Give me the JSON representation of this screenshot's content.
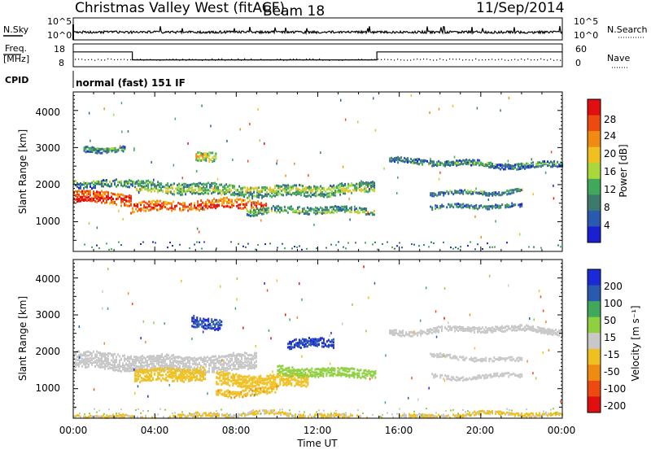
{
  "header": {
    "station": "Christmas Valley West (fitACF)",
    "beam": "Beam 18",
    "date": "11/Sep/2014"
  },
  "mode_text": "normal (fast) 151 IF",
  "noise_panel": {
    "left_label": "N.Sky",
    "right_label": "N.Search",
    "left_ticks": [
      "10^5",
      "10^0"
    ],
    "right_ticks": [
      "10^5",
      "10^0"
    ]
  },
  "freq_panel": {
    "left_label_line1": "Freq.",
    "left_label_line2": "[MHz]",
    "right_label": "Nave",
    "left_ticks": [
      "18",
      "8"
    ],
    "right_ticks": [
      "60",
      "0"
    ],
    "cpid_label": "CPID"
  },
  "time_axis": {
    "label": "Time UT",
    "ticks": [
      "00:00",
      "04:00",
      "08:00",
      "12:00",
      "16:00",
      "20:00",
      "00:00"
    ]
  },
  "colors": {
    "power_scale": [
      "#1a1fd2",
      "#2a5ab0",
      "#3c7a6e",
      "#3fa85a",
      "#a8d83a",
      "#f0c020",
      "#f08a10",
      "#ee4a10",
      "#e01010"
    ],
    "velocity_scale": [
      "#1a2ad8",
      "#2a5ab0",
      "#3fa85a",
      "#8ed040",
      "#c8c8c8",
      "#f0c020",
      "#f08a10",
      "#ee4a10",
      "#e01010"
    ]
  },
  "chart_data": [
    {
      "type": "heatmap",
      "name": "power",
      "ylabel": "Slant Range [km]",
      "xlim_hours": [
        0,
        24
      ],
      "ylim": [
        200,
        4500
      ],
      "yticks": [
        "1000",
        "2000",
        "3000",
        "4000"
      ],
      "colorbar": {
        "label": "Power [dB]",
        "ticks": [
          "4",
          "8",
          "12",
          "16",
          "20",
          "24",
          "28"
        ],
        "range": [
          0,
          32
        ]
      },
      "features": [
        {
          "kind": "band",
          "start_h": 0.0,
          "end_h": 2.8,
          "range_km": 1650,
          "width_km": 320,
          "value": 26
        },
        {
          "kind": "band",
          "start_h": 2.8,
          "end_h": 9.5,
          "range_km": 1450,
          "width_km": 260,
          "value": 24
        },
        {
          "kind": "band",
          "start_h": 3.0,
          "end_h": 14.8,
          "range_km": 1900,
          "width_km": 300,
          "value": 10
        },
        {
          "kind": "band",
          "start_h": 8.5,
          "end_h": 14.8,
          "range_km": 1300,
          "width_km": 180,
          "value": 8
        },
        {
          "kind": "band",
          "start_h": 0.0,
          "end_h": 3.0,
          "range_km": 2100,
          "width_km": 200,
          "value": 6
        },
        {
          "kind": "band",
          "start_h": 15.5,
          "end_h": 24.0,
          "range_km": 2600,
          "width_km": 150,
          "value": 6
        },
        {
          "kind": "band",
          "start_h": 17.5,
          "end_h": 22.0,
          "range_km": 1850,
          "width_km": 100,
          "value": 6
        },
        {
          "kind": "band",
          "start_h": 17.5,
          "end_h": 22.0,
          "range_km": 1400,
          "width_km": 100,
          "value": 6
        },
        {
          "kind": "band",
          "start_h": 0.5,
          "end_h": 2.5,
          "range_km": 3000,
          "width_km": 150,
          "value": 6
        },
        {
          "kind": "band",
          "start_h": 6.0,
          "end_h": 7.0,
          "range_km": 2800,
          "width_km": 250,
          "value": 14
        }
      ]
    },
    {
      "type": "heatmap",
      "name": "velocity",
      "ylabel": "Slant Range [km]",
      "xlim_hours": [
        0,
        24
      ],
      "ylim": [
        200,
        4500
      ],
      "yticks": [
        "1000",
        "2000",
        "3000",
        "4000"
      ],
      "colorbar": {
        "label": "Velocity [m s⁻¹]",
        "ticks": [
          "200",
          "100",
          "50",
          "15",
          "-15",
          "-50",
          "-100",
          "-200"
        ],
        "range": [
          -250,
          250
        ]
      },
      "features": [
        {
          "kind": "band",
          "start_h": 0.0,
          "end_h": 9.0,
          "range_km": 1750,
          "width_km": 450,
          "value": 0
        },
        {
          "kind": "band",
          "start_h": 3.0,
          "end_h": 6.5,
          "range_km": 1400,
          "width_km": 350,
          "value": -60
        },
        {
          "kind": "band",
          "start_h": 7.0,
          "end_h": 11.5,
          "range_km": 1300,
          "width_km": 350,
          "value": -70
        },
        {
          "kind": "band",
          "start_h": 7.0,
          "end_h": 10.0,
          "range_km": 950,
          "width_km": 200,
          "value": -80
        },
        {
          "kind": "band",
          "start_h": 10.0,
          "end_h": 14.8,
          "range_km": 1500,
          "width_km": 250,
          "value": 60
        },
        {
          "kind": "band",
          "start_h": 5.8,
          "end_h": 7.3,
          "range_km": 2800,
          "width_km": 300,
          "value": 220
        },
        {
          "kind": "band",
          "start_h": 10.5,
          "end_h": 12.8,
          "range_km": 2200,
          "width_km": 250,
          "value": 220
        },
        {
          "kind": "band",
          "start_h": 15.5,
          "end_h": 24.0,
          "range_km": 2600,
          "width_km": 150,
          "value": 0
        },
        {
          "kind": "band",
          "start_h": 17.5,
          "end_h": 22.0,
          "range_km": 1850,
          "width_km": 100,
          "value": 0
        },
        {
          "kind": "band",
          "start_h": 17.5,
          "end_h": 22.0,
          "range_km": 1400,
          "width_km": 100,
          "value": 0
        },
        {
          "kind": "band",
          "start_h": 0.0,
          "end_h": 24.0,
          "range_km": 300,
          "width_km": 100,
          "value": -40
        }
      ]
    }
  ],
  "noise_series": {
    "sky_level": 0.35,
    "search_level": 0.3
  },
  "freq_series": {
    "segments": [
      {
        "start_h": 0.0,
        "end_h": 2.9,
        "freq_mhz": 14.5
      },
      {
        "start_h": 2.9,
        "end_h": 14.9,
        "freq_mhz": 11.0
      },
      {
        "start_h": 14.9,
        "end_h": 24.0,
        "freq_mhz": 14.5
      }
    ],
    "nave_level": 20
  }
}
